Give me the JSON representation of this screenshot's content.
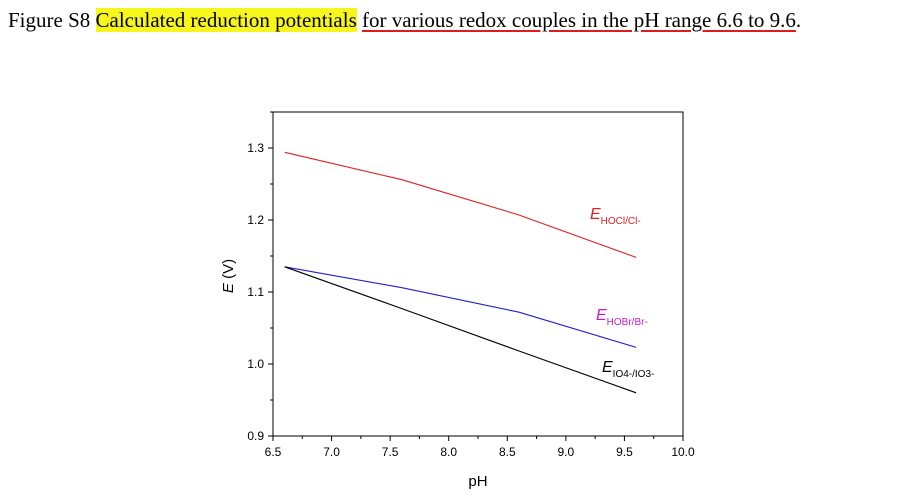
{
  "caption": {
    "prefix": "Figure S8 ",
    "highlight": "Calculated reduction potentials",
    "space": " ",
    "underlined": "for various redox couples in the pH range 6.6 to 9.6",
    "suffix": "."
  },
  "colors": {
    "highlight": "#f6f51c",
    "underline": "#e11b1b",
    "hocl": "#e02020",
    "hobr": "#2020d0",
    "hobr_label": "#c020c0",
    "io4": "#000000"
  },
  "chart_data": {
    "type": "line",
    "xlabel": "pH",
    "ylabel": "E (V)",
    "xlim": [
      6.5,
      10.0
    ],
    "ylim": [
      0.9,
      1.35
    ],
    "xticks": [
      6.5,
      7.0,
      7.5,
      8.0,
      8.5,
      9.0,
      9.5,
      10.0
    ],
    "xtick_labels": [
      "6.5",
      "7.0",
      "7.5",
      "8.0",
      "8.5",
      "9.0",
      "9.5",
      "10.0"
    ],
    "yticks": [
      0.9,
      1.0,
      1.1,
      1.2,
      1.3
    ],
    "ytick_labels": [
      "0.9",
      "1.0",
      "1.1",
      "1.2",
      "1.3"
    ],
    "grid": false,
    "series": [
      {
        "key": "hocl",
        "label_main": "E",
        "label_sub": "HOCl/Cl-",
        "x": [
          6.6,
          7.6,
          8.6,
          9.6
        ],
        "y": [
          1.294,
          1.256,
          1.207,
          1.148
        ]
      },
      {
        "key": "hobr",
        "label_main": "E",
        "label_sub": "HOBr/Br-",
        "x": [
          6.6,
          7.6,
          8.6,
          9.6
        ],
        "y": [
          1.135,
          1.106,
          1.072,
          1.023
        ]
      },
      {
        "key": "io4",
        "label_main": "E",
        "label_sub": "IO4-/IO3-",
        "x": [
          6.6,
          7.6,
          8.6,
          9.6
        ],
        "y": [
          1.135,
          1.077,
          1.018,
          0.96
        ]
      }
    ]
  }
}
